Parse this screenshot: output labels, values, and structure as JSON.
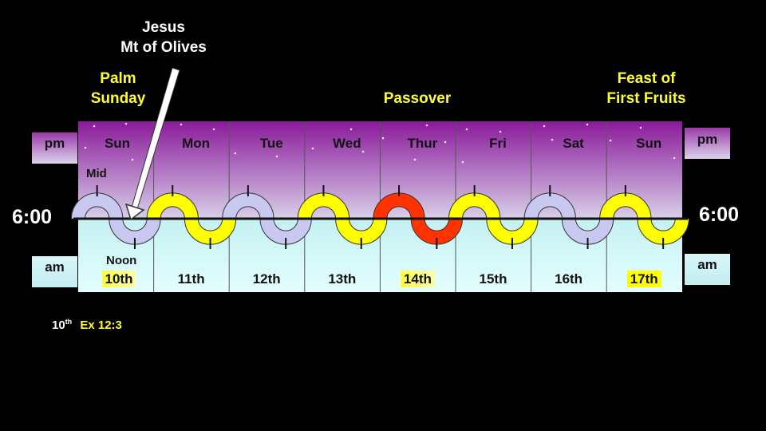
{
  "annotations": {
    "jesus_line1": "Jesus",
    "jesus_line2": "Mt of Olives",
    "palm_line1": "Palm",
    "palm_line2": "Sunday",
    "passover": "Passover",
    "feast_line1": "Feast of",
    "feast_line2": "First Fruits"
  },
  "labels": {
    "pm": "pm",
    "am": "am",
    "six_left": "6:00",
    "six_right": "6:00",
    "mid": "Mid",
    "noon": "Noon"
  },
  "days": [
    {
      "name": "Sun",
      "date": "10th",
      "color": "#c8c8f0",
      "highlight": true
    },
    {
      "name": "Mon",
      "date": "11th",
      "color": "#ffff00",
      "highlight": false
    },
    {
      "name": "Tue",
      "date": "12th",
      "color": "#c8c8f0",
      "highlight": false
    },
    {
      "name": "Wed",
      "date": "13th",
      "color": "#ffff00",
      "highlight": false
    },
    {
      "name": "Thur",
      "date": "14th",
      "color": "#ff3300",
      "highlight": true
    },
    {
      "name": "Fri",
      "date": "15th",
      "color": "#ffff00",
      "highlight": false
    },
    {
      "name": "Sat",
      "date": "16th",
      "color": "#c8c8f0",
      "highlight": false
    },
    {
      "name": "Sun",
      "date": "17th",
      "color": "#ffff00",
      "highlight": true
    }
  ],
  "footnote": {
    "day": "10",
    "suffix": "th",
    "ref": "Ex 12:3"
  },
  "colors": {
    "night_top": "#8a1a9a",
    "night_bottom": "#d8d0e8",
    "day_top": "#c4f0f2",
    "day_bottom": "#e4ffff",
    "accent_yellow": "#ffff33"
  }
}
